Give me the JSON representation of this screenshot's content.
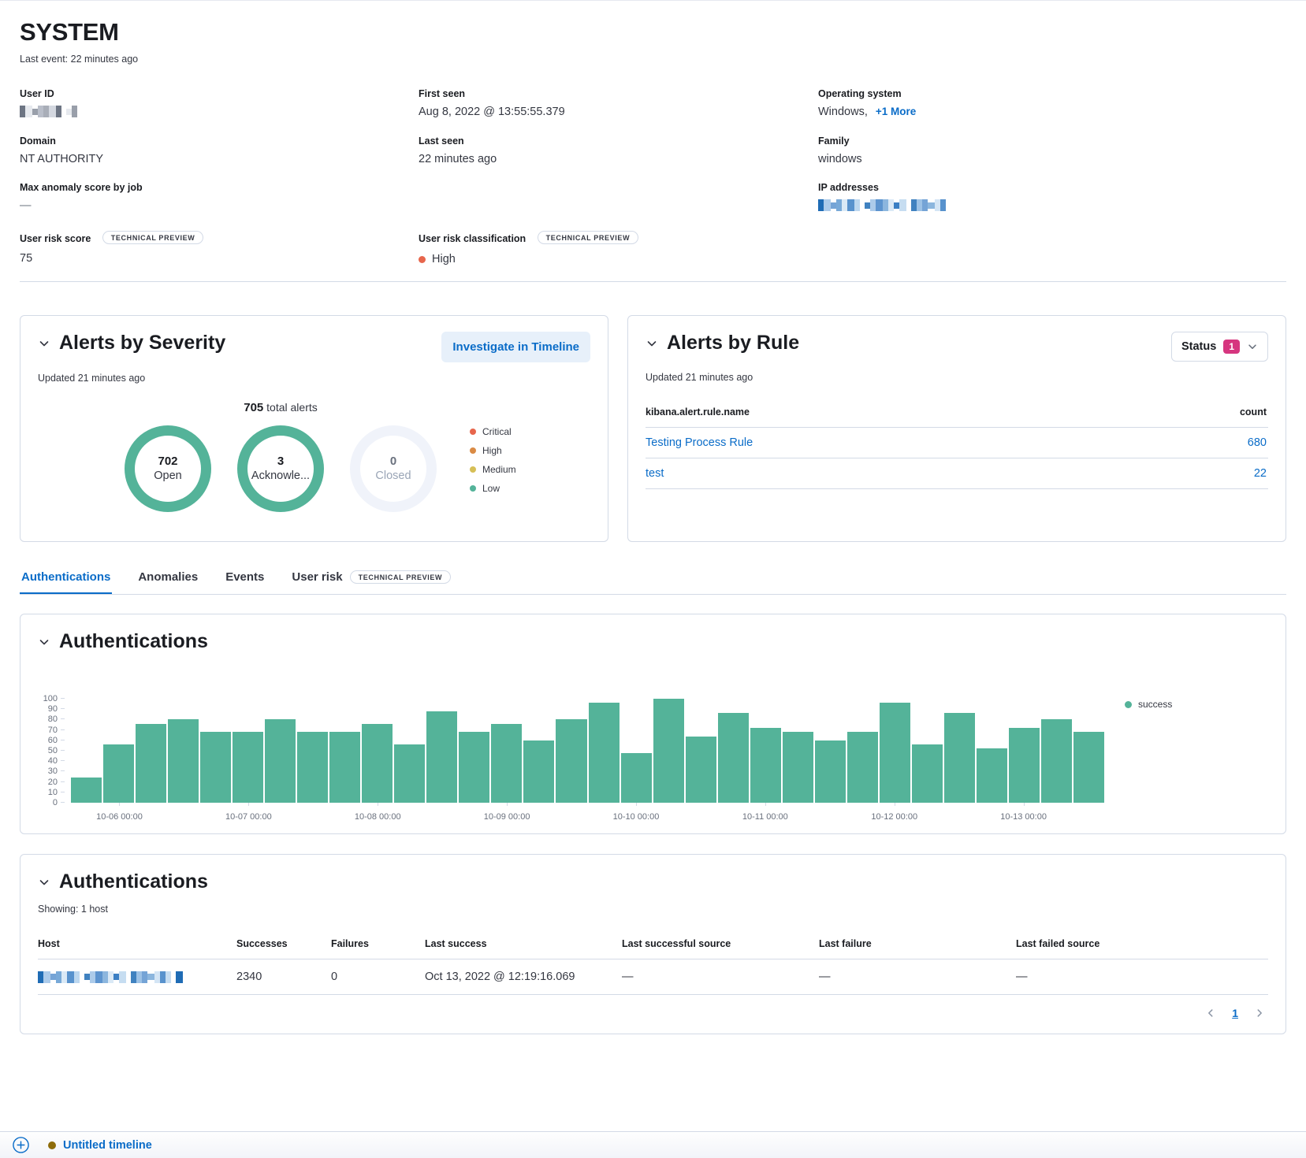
{
  "page": {
    "title": "SYSTEM",
    "last_event": "Last event: 22 minutes ago"
  },
  "details": {
    "user_id_label": "User ID",
    "domain_label": "Domain",
    "domain_value": "NT AUTHORITY",
    "max_anomaly_label": "Max anomaly score by job",
    "max_anomaly_value": "—",
    "first_seen_label": "First seen",
    "first_seen_value": "Aug 8, 2022 @ 13:55:55.379",
    "last_seen_label": "Last seen",
    "last_seen_value": "22 minutes ago",
    "os_label": "Operating system",
    "os_value": "Windows,",
    "os_more_link": "+1 More",
    "family_label": "Family",
    "family_value": "windows",
    "ip_label": "IP addresses",
    "risk_score_label": "User risk score",
    "risk_score_value": "75",
    "risk_class_label": "User risk classification",
    "risk_class_value": "High",
    "tech_preview_badge": "TECHNICAL PREVIEW"
  },
  "alerts_severity": {
    "title": "Alerts by Severity",
    "investigate_button": "Investigate in Timeline",
    "updated": "Updated 21 minutes ago",
    "total_count": "705",
    "total_suffix": " total alerts",
    "donuts": [
      {
        "value": "702",
        "label": "Open",
        "color": "#54B399"
      },
      {
        "value": "3",
        "label": "Acknowle...",
        "color": "#54B399"
      },
      {
        "value": "0",
        "label": "Closed",
        "color": "#F0F3FA"
      }
    ],
    "legend": [
      {
        "label": "Critical",
        "color": "#E7664C"
      },
      {
        "label": "High",
        "color": "#DA8B45"
      },
      {
        "label": "Medium",
        "color": "#D6BF57"
      },
      {
        "label": "Low",
        "color": "#54B399"
      }
    ]
  },
  "alerts_rule": {
    "title": "Alerts by Rule",
    "status_label": "Status",
    "status_count": "1",
    "updated": "Updated 21 minutes ago",
    "name_column": "kibana.alert.rule.name",
    "count_column": "count",
    "rows": [
      {
        "name": "Testing Process Rule",
        "count": "680"
      },
      {
        "name": "test",
        "count": "22"
      }
    ]
  },
  "tabs": [
    {
      "label": "Authentications",
      "active": true
    },
    {
      "label": "Anomalies"
    },
    {
      "label": "Events"
    },
    {
      "label": "User risk",
      "badge": "TECHNICAL PREVIEW"
    }
  ],
  "chart_data": {
    "type": "bar",
    "title": "Authentications",
    "series": [
      {
        "name": "success",
        "color": "#54B399",
        "values": [
          24,
          56,
          76,
          80,
          68,
          68,
          80,
          68,
          68,
          76,
          56,
          88,
          68,
          76,
          60,
          80,
          96,
          48,
          100,
          64,
          86,
          72,
          68,
          60,
          68,
          96,
          56,
          86,
          52,
          72,
          80,
          68
        ]
      }
    ],
    "x_tick_labels": [
      "10-06 00:00",
      "10-07 00:00",
      "10-08 00:00",
      "10-09 00:00",
      "10-10 00:00",
      "10-11 00:00",
      "10-12 00:00",
      "10-13 00:00"
    ],
    "x_tick_every_bars": 4,
    "x_tick_first_bar_center": 1.5,
    "y_ticks": [
      0,
      10,
      20,
      30,
      40,
      50,
      60,
      70,
      80,
      90,
      100
    ],
    "ylim": [
      0,
      100
    ],
    "grid": false,
    "legend_position": "right"
  },
  "auth_table": {
    "title": "Authentications",
    "showing": "Showing: 1 host",
    "columns": [
      "Host",
      "Successes",
      "Failures",
      "Last success",
      "Last successful source",
      "Last failure",
      "Last failed source"
    ],
    "row": {
      "successes": "2340",
      "failures": "0",
      "last_success": "Oct 13, 2022 @ 12:19:16.069",
      "last_successful_source": "—",
      "last_failure": "—",
      "last_failed_source": "—"
    },
    "pagination": {
      "page": "1"
    }
  },
  "timeline_bar": {
    "label": "Untitled timeline"
  },
  "colors": {
    "link_blue": "#0a6cc8",
    "bar_green": "#54B399",
    "status_badge_pink": "#d6367f",
    "risk_high_dot": "#E7664C",
    "timeline_dot": "#8E6C0A"
  }
}
